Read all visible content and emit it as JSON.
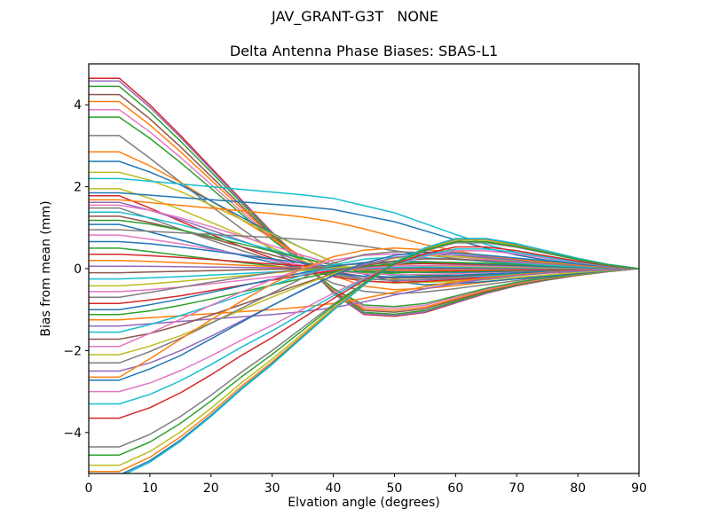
{
  "figure": {
    "suptitle": "JAV_GRANT-G3T   NONE"
  },
  "chart_data": {
    "type": "line",
    "title": "Delta Antenna Phase Biases: SBAS-L1",
    "xlabel": "Elvation angle (degrees)",
    "ylabel": "Bias from mean (mm)",
    "xlim": [
      0,
      90
    ],
    "ylim": [
      -5,
      5
    ],
    "xticks": {
      "values": [
        0,
        10,
        20,
        30,
        40,
        50,
        60,
        70,
        80,
        90
      ],
      "labels": [
        "0",
        "10",
        "20",
        "30",
        "40",
        "50",
        "60",
        "70",
        "80",
        "90"
      ]
    },
    "yticks": {
      "values": [
        -4,
        -2,
        0,
        2,
        4
      ],
      "labels": [
        "−4",
        "−2",
        "0",
        "2",
        "4"
      ]
    },
    "grid": false,
    "legend": null,
    "axis_color": "#000000",
    "background": "#ffffff",
    "line_width": 1.5,
    "x_nodes": [
      0,
      5,
      10,
      15,
      20,
      25,
      30,
      35,
      40,
      45,
      50,
      55,
      60,
      65,
      70,
      75,
      80,
      85,
      90
    ],
    "encoding": "Each unlabeled bias curve is piecewise-linear over x_nodes; y value (mm) at node i = start * shapes[shape][i]. All curves are flat from 0-5 deg and converge to 0 mm at 90 deg.",
    "shapes": {
      "A": [
        1,
        1,
        0.88,
        0.74,
        0.58,
        0.42,
        0.26,
        0.1,
        -0.06,
        -0.15,
        -0.18,
        -0.17,
        -0.145,
        -0.115,
        -0.085,
        -0.055,
        -0.03,
        -0.012,
        0
      ],
      "B": [
        1,
        1,
        0.92,
        0.8,
        0.66,
        0.51,
        0.36,
        0.21,
        0.07,
        -0.04,
        -0.11,
        -0.14,
        -0.135,
        -0.115,
        -0.09,
        -0.065,
        -0.04,
        -0.018,
        0
      ],
      "C": [
        1,
        1,
        0.83,
        0.65,
        0.47,
        0.3,
        0.14,
        0.0,
        -0.11,
        -0.17,
        -0.19,
        -0.175,
        -0.15,
        -0.12,
        -0.09,
        -0.06,
        -0.035,
        -0.015,
        0
      ],
      "D": [
        1,
        1,
        0.9,
        0.78,
        0.63,
        0.48,
        0.33,
        0.19,
        0.06,
        -0.05,
        -0.12,
        -0.15,
        -0.14,
        -0.12,
        -0.095,
        -0.07,
        -0.042,
        -0.018,
        0
      ],
      "E": [
        1,
        1,
        0.86,
        0.7,
        0.53,
        0.36,
        0.19,
        0.04,
        -0.13,
        -0.24,
        -0.25,
        -0.23,
        -0.18,
        -0.13,
        -0.09,
        -0.06,
        -0.035,
        -0.015,
        0
      ],
      "N": [
        1,
        1,
        0.93,
        0.83,
        0.71,
        0.58,
        0.46,
        0.33,
        0.2,
        0.08,
        -0.03,
        -0.1,
        -0.145,
        -0.145,
        -0.12,
        -0.085,
        -0.05,
        -0.02,
        0
      ],
      "S": [
        1,
        1,
        0.97,
        0.94,
        0.91,
        0.88,
        0.85,
        0.82,
        0.78,
        0.7,
        0.62,
        0.5,
        0.38,
        0.27,
        0.18,
        0.11,
        0.055,
        0.02,
        0
      ],
      "S2": [
        1,
        1,
        0.96,
        0.92,
        0.88,
        0.84,
        0.8,
        0.75,
        0.68,
        0.58,
        0.46,
        0.35,
        0.26,
        0.18,
        0.12,
        0.075,
        0.04,
        0.015,
        0
      ]
    },
    "series": [
      {
        "color": "#d62728",
        "start": 4.65,
        "shape": "E"
      },
      {
        "color": "#9467bd",
        "start": 4.58,
        "shape": "E"
      },
      {
        "color": "#2ca02c",
        "start": 4.45,
        "shape": "E"
      },
      {
        "color": "#8c564b",
        "start": 4.25,
        "shape": "E"
      },
      {
        "color": "#ff7f0e",
        "start": 4.08,
        "shape": "E"
      },
      {
        "color": "#e377c2",
        "start": 3.88,
        "shape": "E"
      },
      {
        "color": "#2ca02c",
        "start": 3.7,
        "shape": "E"
      },
      {
        "color": "#7f7f7f",
        "start": 3.25,
        "shape": "C"
      },
      {
        "color": "#ff7f0e",
        "start": 2.85,
        "shape": "A"
      },
      {
        "color": "#1f77b4",
        "start": 2.62,
        "shape": "D"
      },
      {
        "color": "#bcbd22",
        "start": 2.35,
        "shape": "B"
      },
      {
        "color": "#17becf",
        "start": 2.2,
        "shape": "S"
      },
      {
        "color": "#bcbd22",
        "start": 1.95,
        "shape": "A"
      },
      {
        "color": "#1f77b4",
        "start": 1.85,
        "shape": "S"
      },
      {
        "color": "#d62728",
        "start": 1.78,
        "shape": "C"
      },
      {
        "color": "#ff7f0e",
        "start": 1.68,
        "shape": "S2"
      },
      {
        "color": "#9467bd",
        "start": 1.62,
        "shape": "A"
      },
      {
        "color": "#e377c2",
        "start": 1.55,
        "shape": "B"
      },
      {
        "color": "#7f7f7f",
        "start": 1.48,
        "shape": "C"
      },
      {
        "color": "#17becf",
        "start": 1.38,
        "shape": "D"
      },
      {
        "color": "#8c564b",
        "start": 1.28,
        "shape": "A"
      },
      {
        "color": "#2ca02c",
        "start": 1.18,
        "shape": "B"
      },
      {
        "color": "#1f77b4",
        "start": 1.08,
        "shape": "C"
      },
      {
        "color": "#7f7f7f",
        "start": 0.95,
        "shape": "S2"
      },
      {
        "color": "#e377c2",
        "start": 0.82,
        "shape": "A"
      },
      {
        "color": "#1f77b4",
        "start": 0.66,
        "shape": "B"
      },
      {
        "color": "#2ca02c",
        "start": 0.5,
        "shape": "C"
      },
      {
        "color": "#d62728",
        "start": 0.35,
        "shape": "D"
      },
      {
        "color": "#ff7f0e",
        "start": 0.2,
        "shape": "A"
      },
      {
        "color": "#9467bd",
        "start": 0.06,
        "shape": "B"
      },
      {
        "color": "#8c564b",
        "start": -0.1,
        "shape": "C"
      },
      {
        "color": "#17becf",
        "start": -0.25,
        "shape": "D"
      },
      {
        "color": "#bcbd22",
        "start": -0.42,
        "shape": "A"
      },
      {
        "color": "#e377c2",
        "start": -0.56,
        "shape": "B"
      },
      {
        "color": "#7f7f7f",
        "start": -0.7,
        "shape": "C"
      },
      {
        "color": "#d62728",
        "start": -0.85,
        "shape": "D"
      },
      {
        "color": "#1f77b4",
        "start": -1.0,
        "shape": "A"
      },
      {
        "color": "#2ca02c",
        "start": -1.12,
        "shape": "B"
      },
      {
        "color": "#ff7f0e",
        "start": -1.25,
        "shape": "S2"
      },
      {
        "color": "#9467bd",
        "start": -1.4,
        "shape": "S2"
      },
      {
        "color": "#17becf",
        "start": -1.55,
        "shape": "A"
      },
      {
        "color": "#8c564b",
        "start": -1.72,
        "shape": "B"
      },
      {
        "color": "#e377c2",
        "start": -1.9,
        "shape": "C"
      },
      {
        "color": "#bcbd22",
        "start": -2.1,
        "shape": "D"
      },
      {
        "color": "#7f7f7f",
        "start": -2.3,
        "shape": "A"
      },
      {
        "color": "#9467bd",
        "start": -2.5,
        "shape": "B"
      },
      {
        "color": "#ff7f0e",
        "start": -2.65,
        "shape": "C"
      },
      {
        "color": "#1f77b4",
        "start": -2.72,
        "shape": "D"
      },
      {
        "color": "#e377c2",
        "start": -3.0,
        "shape": "N"
      },
      {
        "color": "#17becf",
        "start": -3.3,
        "shape": "N"
      },
      {
        "color": "#d62728",
        "start": -3.65,
        "shape": "N"
      },
      {
        "color": "#7f7f7f",
        "start": -4.35,
        "shape": "N"
      },
      {
        "color": "#bcbd22",
        "start": -4.8,
        "shape": "N"
      },
      {
        "color": "#ff7f0e",
        "start": -4.95,
        "shape": "N"
      },
      {
        "color": "#1f77b4",
        "start": -5.04,
        "shape": "N"
      },
      {
        "color": "#17becf",
        "start": -5.08,
        "shape": "N"
      },
      {
        "color": "#2ca02c",
        "start": -4.55,
        "shape": "N"
      }
    ]
  }
}
